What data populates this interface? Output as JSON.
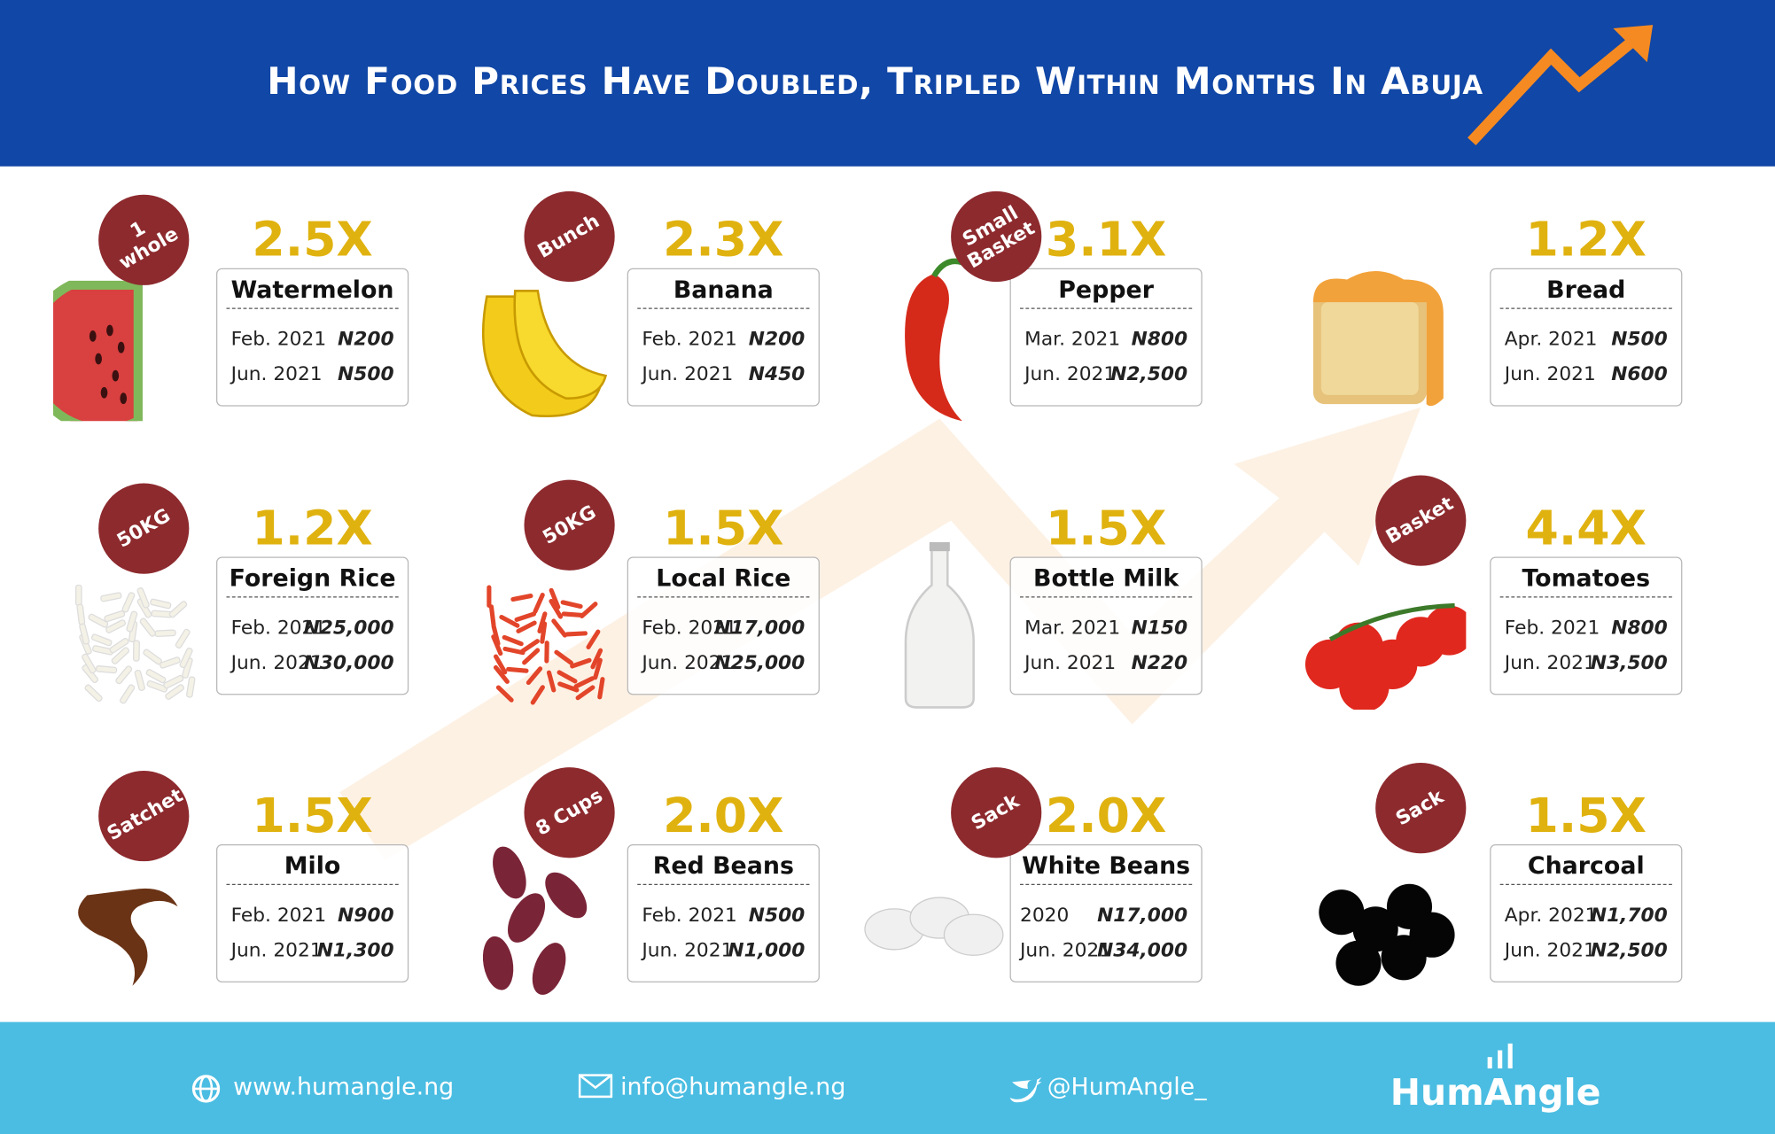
{
  "header": {
    "title": "How Food Prices Have Doubled, Tripled Within Months In Abuja"
  },
  "items": [
    {
      "badge": "1 whole",
      "multiplier": "2.5X",
      "name": "Watermelon",
      "rows": [
        [
          "Feb. 2021",
          "N200"
        ],
        [
          "Jun. 2021",
          "N500"
        ]
      ]
    },
    {
      "badge": "Bunch",
      "multiplier": "2.3X",
      "name": "Banana",
      "rows": [
        [
          "Feb. 2021",
          "N200"
        ],
        [
          "Jun. 2021",
          "N450"
        ]
      ]
    },
    {
      "badge": "Small Basket",
      "multiplier": "3.1X",
      "name": "Pepper",
      "rows": [
        [
          "Mar. 2021",
          "N800"
        ],
        [
          "Jun. 2021",
          "N2,500"
        ]
      ]
    },
    {
      "multiplier": "1.2X",
      "name": "Bread",
      "rows": [
        [
          "Apr. 2021",
          "N500"
        ],
        [
          "Jun. 2021",
          "N600"
        ]
      ]
    },
    {
      "badge": "50KG",
      "multiplier": "1.2X",
      "name": "Foreign Rice",
      "rows": [
        [
          "Feb. 2021",
          "N25,000"
        ],
        [
          "Jun. 2021",
          "N30,000"
        ]
      ]
    },
    {
      "badge": "50KG",
      "multiplier": "1.5X",
      "name": "Local Rice",
      "rows": [
        [
          "Feb. 2021",
          "N17,000"
        ],
        [
          "Jun. 2021",
          "N25,000"
        ]
      ]
    },
    {
      "multiplier": "1.5X",
      "name": "Bottle Milk",
      "rows": [
        [
          "Mar. 2021",
          "N150"
        ],
        [
          "Jun. 2021",
          "N220"
        ]
      ]
    },
    {
      "badge": "Basket",
      "multiplier": "4.4X",
      "name": "Tomatoes",
      "rows": [
        [
          "Feb. 2021",
          "N800"
        ],
        [
          "Jun. 2021",
          "N3,500"
        ]
      ]
    },
    {
      "badge": "Satchet",
      "multiplier": "1.5X",
      "name": "Milo",
      "rows": [
        [
          "Feb. 2021",
          "N900"
        ],
        [
          "Jun. 2021",
          "N1,300"
        ]
      ]
    },
    {
      "badge": "8 Cups",
      "multiplier": "2.0X",
      "name": "Red Beans",
      "rows": [
        [
          "Feb. 2021",
          "N500"
        ],
        [
          "Jun. 2021",
          "N1,000"
        ]
      ]
    },
    {
      "badge": "Sack",
      "multiplier": "2.0X",
      "name": "White Beans",
      "rows": [
        [
          "2020",
          "N17,000"
        ],
        [
          "Jun. 2021",
          "N34,000"
        ]
      ]
    },
    {
      "badge": "Sack",
      "multiplier": "1.5X",
      "name": "Charcoal",
      "rows": [
        [
          "Apr. 2021",
          "N1,700"
        ],
        [
          "Jun. 2021",
          "N2,500"
        ]
      ]
    }
  ],
  "footer": {
    "website": "www.humangle.ng",
    "email": "info@humangle.ng",
    "twitter": "@HumAngle_",
    "brand": "HumAngle"
  }
}
